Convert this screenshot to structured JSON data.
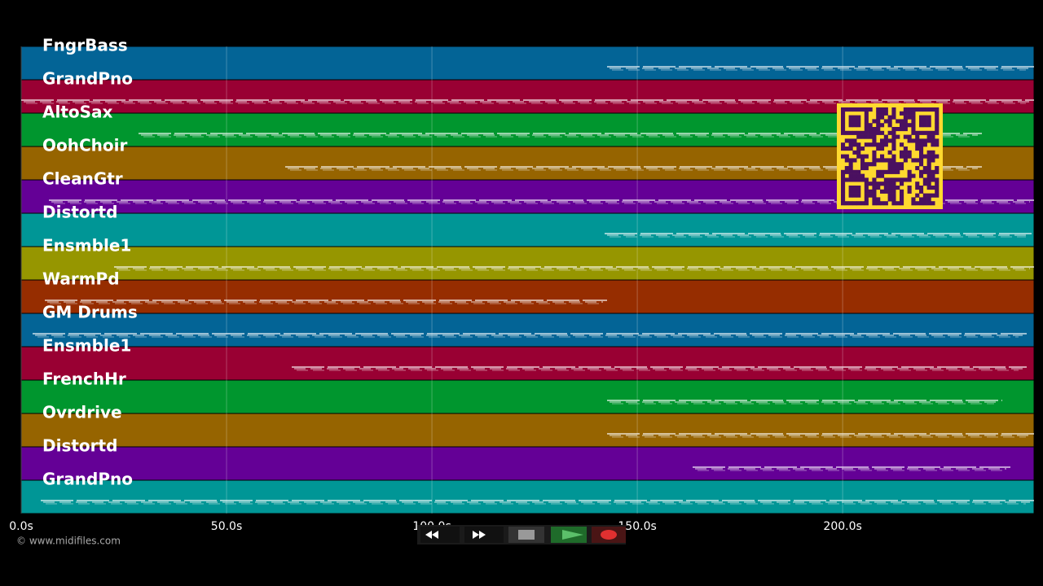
{
  "tracks": [
    {
      "name": "FngrBass",
      "color": "#036496"
    },
    {
      "name": "GrandPno",
      "color": "#990033"
    },
    {
      "name": "AltoSax",
      "color": "#00962e"
    },
    {
      "name": "OohChoir",
      "color": "#966400"
    },
    {
      "name": "CleanGtr",
      "color": "#640096"
    },
    {
      "name": "Distortd",
      "color": "#009696"
    },
    {
      "name": "Ensmble1",
      "color": "#969600"
    },
    {
      "name": "WarmPd",
      "color": "#962d00"
    },
    {
      "name": "GM Drums",
      "color": "#036496"
    },
    {
      "name": "Ensmble1",
      "color": "#990033"
    },
    {
      "name": "FrenchHr",
      "color": "#00962e"
    },
    {
      "name": "Ovrdrive",
      "color": "#966400"
    },
    {
      "name": "Distortd",
      "color": "#640096"
    },
    {
      "name": "GrandPno",
      "color": "#009696"
    }
  ],
  "time_axis": {
    "xlim": [
      0,
      246.6
    ],
    "xticks": [
      {
        "value": 0,
        "label": "0.0s"
      },
      {
        "value": 50,
        "label": "50.0s"
      },
      {
        "value": 100,
        "label": "100.0s"
      },
      {
        "value": 150,
        "label": "150.0s"
      },
      {
        "value": 200,
        "label": "200.0s"
      }
    ]
  },
  "footer": {
    "copyright": "© www.midifiles.com"
  }
}
